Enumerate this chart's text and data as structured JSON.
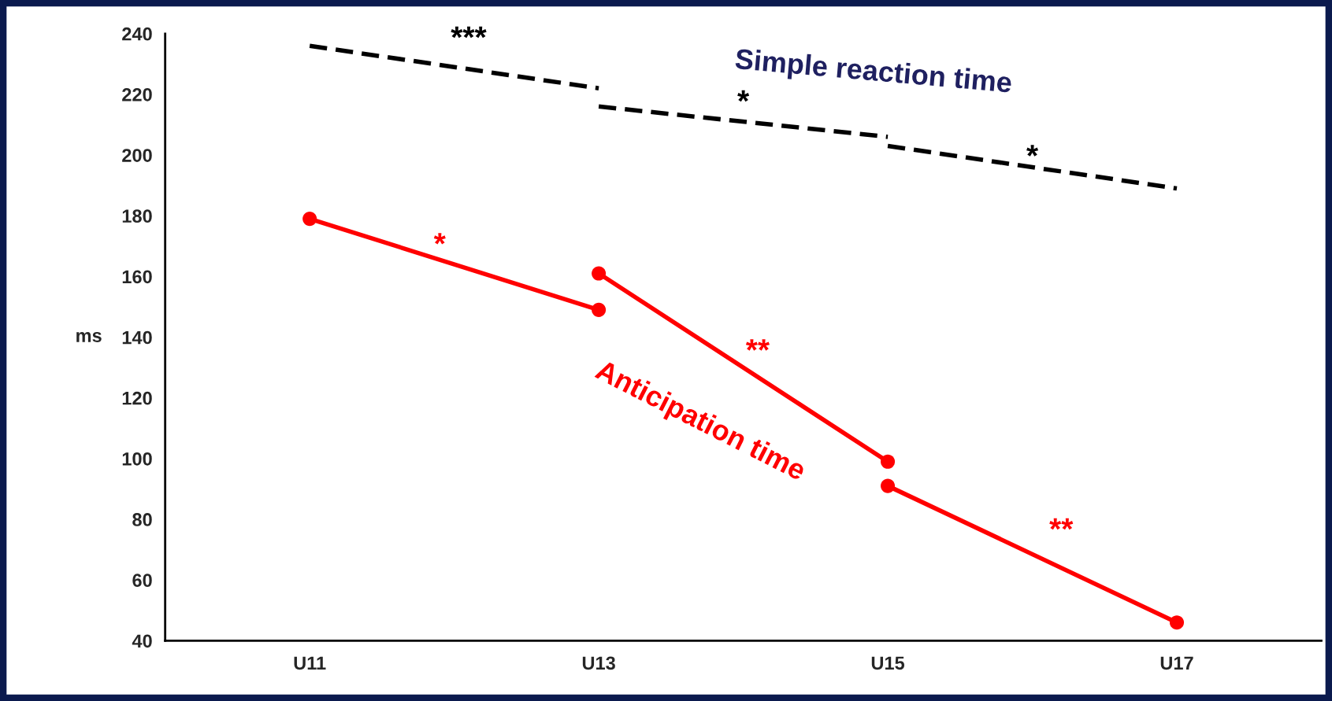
{
  "chart_data": {
    "type": "line",
    "categories": [
      "U11",
      "U13",
      "U15",
      "U17"
    ],
    "ylabel": "ms",
    "ylim": [
      40,
      240
    ],
    "yticks": [
      40,
      60,
      80,
      100,
      120,
      140,
      160,
      180,
      200,
      220,
      240
    ],
    "grid": false,
    "legend": false,
    "series": [
      {
        "color": "#000000",
        "line_style": "dashed",
        "marker": "none",
        "values": [
          236,
          222,
          null,
          null
        ]
      },
      {
        "color": "#000000",
        "line_style": "dashed",
        "marker": "none",
        "values": [
          null,
          216,
          206,
          null
        ]
      },
      {
        "color": "#000000",
        "line_style": "dashed",
        "marker": "none",
        "values": [
          null,
          null,
          203,
          189
        ]
      },
      {
        "color": "#ff0000",
        "line_style": "solid",
        "marker": "circle",
        "values": [
          179,
          149,
          null,
          null
        ]
      },
      {
        "color": "#ff0000",
        "line_style": "solid",
        "marker": "circle",
        "values": [
          null,
          161,
          99,
          null
        ]
      },
      {
        "color": "#ff0000",
        "line_style": "solid",
        "marker": "circle",
        "values": [
          null,
          null,
          91,
          46
        ]
      }
    ],
    "annotations": [
      "Simple reaction time",
      "Anticipation time",
      "***",
      "*",
      "*",
      "*",
      "**",
      "**"
    ]
  }
}
